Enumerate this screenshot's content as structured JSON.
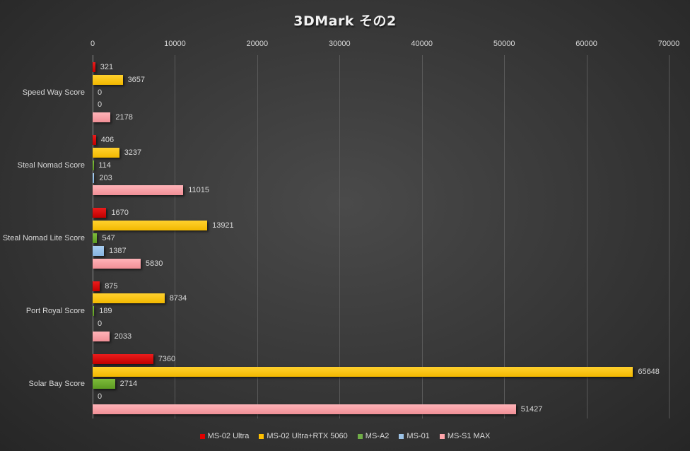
{
  "chart_data": {
    "type": "bar",
    "orientation": "horizontal",
    "title": "3DMark その2",
    "xlabel": "",
    "ylabel": "",
    "xlim": [
      0,
      70000
    ],
    "x_ticks": [
      0,
      10000,
      20000,
      30000,
      40000,
      50000,
      60000,
      70000
    ],
    "x_tick_labels": [
      "0",
      "10000",
      "20000",
      "30000",
      "40000",
      "50000",
      "60000",
      "70000"
    ],
    "x_axis_position": "top",
    "grid": true,
    "legend_position": "bottom",
    "categories": [
      "Speed Way Score",
      "Steal Nomad Score",
      "Steal Nomad Lite Score",
      "Port Royal Score",
      "Solar Bay Score"
    ],
    "series": [
      {
        "name": "MS-02 Ultra",
        "color": "#e00000",
        "values": [
          321,
          406,
          1670,
          875,
          7360
        ]
      },
      {
        "name": "MS-02 Ultra+RTX 5060",
        "color": "#ffc000",
        "values": [
          3657,
          3237,
          13921,
          8734,
          65648
        ]
      },
      {
        "name": "MS-A2",
        "color": "#70ad47",
        "values": [
          0,
          114,
          547,
          189,
          2714
        ]
      },
      {
        "name": "MS-01",
        "color": "#9dc3e6",
        "values": [
          0,
          203,
          1387,
          0,
          0
        ]
      },
      {
        "name": "MS-S1 MAX",
        "color": "#ffa5ab",
        "values": [
          2178,
          11015,
          5830,
          2033,
          51427
        ]
      }
    ]
  }
}
